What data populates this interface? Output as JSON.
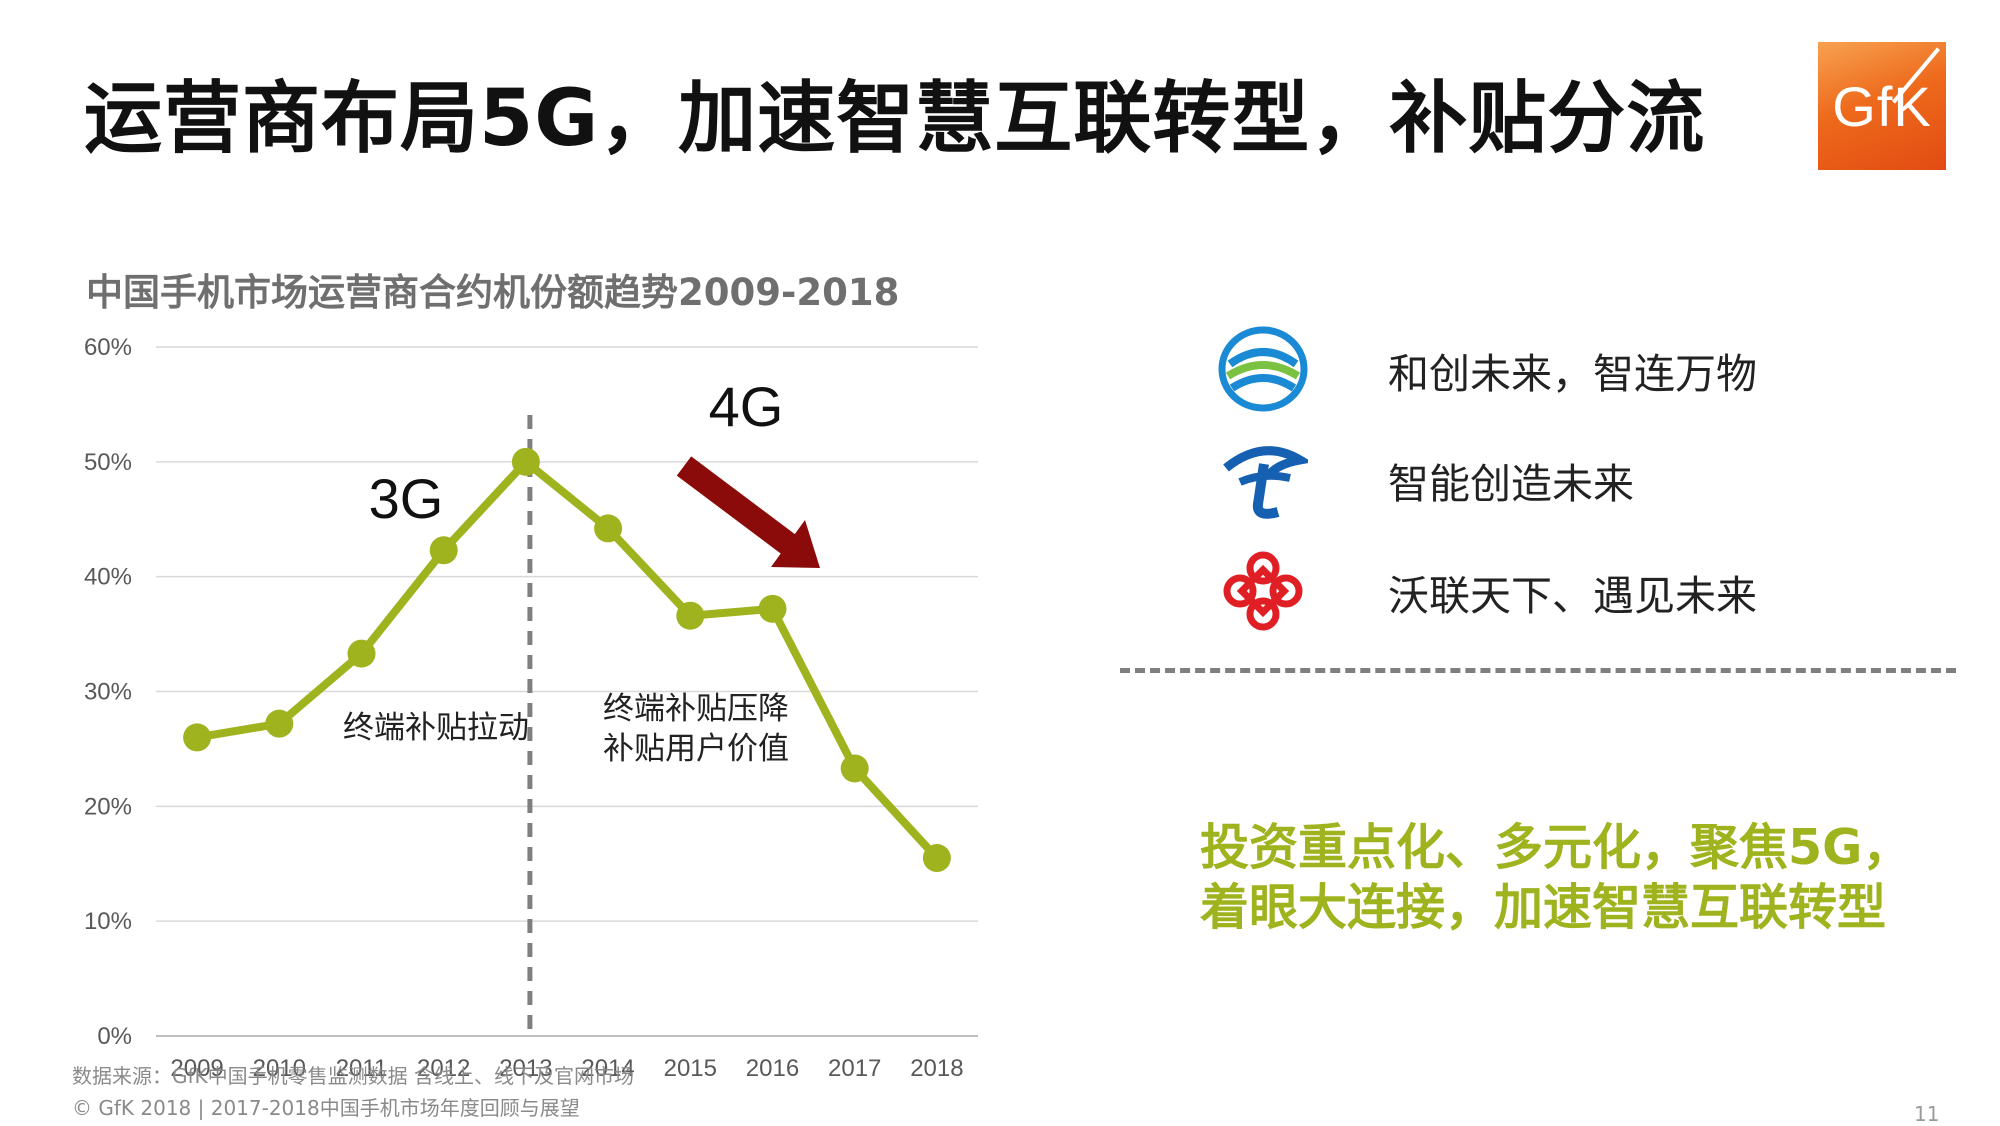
{
  "header": {
    "title": "运营商布局5G，加速智慧互联转型，补贴分流",
    "logo_text": "GfK"
  },
  "chart_data": {
    "type": "line",
    "title": "中国手机市场运营商合约机份额趋势2009-2018",
    "x": [
      "2009",
      "2010",
      "2011",
      "2012",
      "2013",
      "2014",
      "2015",
      "2016",
      "2017",
      "2018"
    ],
    "values": [
      26,
      27.2,
      33.3,
      42.3,
      50,
      44.2,
      36.6,
      37.2,
      23.3,
      15.5
    ],
    "ylim": [
      0,
      60
    ],
    "yticks": [
      0,
      10,
      20,
      30,
      40,
      50,
      60
    ],
    "ytick_labels": [
      "0%",
      "10%",
      "20%",
      "30%",
      "40%",
      "50%",
      "60%"
    ],
    "divider_at": "2013",
    "annotations": {
      "era_3g": "3G",
      "era_4g": "4G",
      "left_note": "终端补贴拉动",
      "right_note_line1": "终端补贴压降",
      "right_note_line2": "补贴用户价值"
    },
    "colors": {
      "line": "#9fb31e",
      "grid": "#d9d9d9",
      "axis": "#bfbfbf",
      "divider": "#7f7f7f",
      "arrow": "#8b0a0a"
    }
  },
  "carriers": [
    {
      "name": "china-mobile",
      "icon": "china-mobile-logo-icon",
      "tagline": "和创未来，智连万物"
    },
    {
      "name": "china-telecom",
      "icon": "china-telecom-logo-icon",
      "tagline": "智能创造未来"
    },
    {
      "name": "china-unicom",
      "icon": "china-unicom-logo-icon",
      "tagline": "沃联天下、遇见未来"
    }
  ],
  "conclusion": {
    "line1": "投资重点化、多元化，聚焦5G，",
    "line2": "着眼大连接，加速智慧互联转型"
  },
  "footer": {
    "source": "数据来源：GfK中国手机零售监测数据 含线上、线下及官网市场",
    "copyright": "© GfK 2018 | 2017-2018中国手机市场年度回顾与展望",
    "page_number": "11"
  }
}
